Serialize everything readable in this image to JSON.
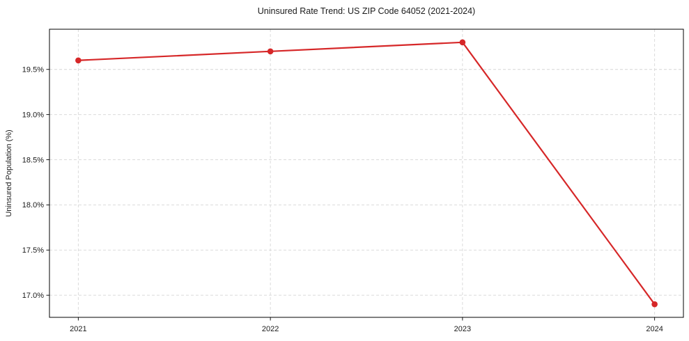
{
  "chart_data": {
    "type": "line",
    "title": "Uninsured Rate Trend: US ZIP Code 64052 (2021-2024)",
    "xlabel": "",
    "ylabel": "Uninsured Population (%)",
    "x": [
      2021,
      2022,
      2023,
      2024
    ],
    "values": [
      19.6,
      19.7,
      19.8,
      16.9
    ],
    "x_tick_labels": [
      "2021",
      "2022",
      "2023",
      "2024"
    ],
    "y_tick_values": [
      17.0,
      17.5,
      18.0,
      18.5,
      19.0,
      19.5
    ],
    "y_tick_labels": [
      "17.0%",
      "17.5%",
      "18.0%",
      "18.5%",
      "19.0%",
      "19.5%"
    ],
    "xlim": [
      2020.85,
      2024.15
    ],
    "ylim": [
      16.755,
      19.945
    ],
    "grid": true,
    "grid_style": "dashed",
    "legend": "none",
    "line_color": "#d62728",
    "marker": "circle",
    "grid_color": "#d6d6d6",
    "axis_color": "#000000",
    "background_color": "#ffffff"
  }
}
